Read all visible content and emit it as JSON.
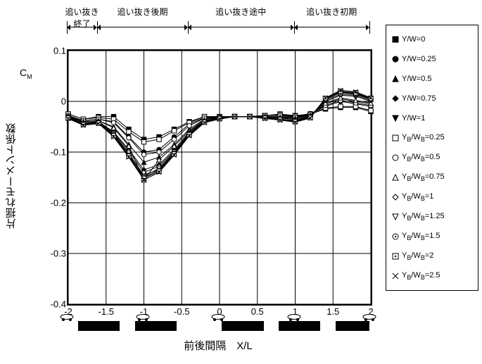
{
  "type": "line",
  "title": "",
  "ylabel": "片揺れモーメント係数",
  "ylabel_sub": "C",
  "ylabel_subscript": "M",
  "xlabel": "前後間隔　X/L",
  "xlim": [
    -2,
    2
  ],
  "ylim": [
    -0.4,
    0.1
  ],
  "xtick_step": 0.5,
  "ytick_step": 0.1,
  "yticks": [
    "0.1",
    "0",
    "-0.1",
    "-0.2",
    "-0.3",
    "-0.4"
  ],
  "xticks": [
    "-2",
    "-1.5",
    "-1",
    "-0.5",
    "0",
    "0.5",
    "1",
    "1.5",
    "2"
  ],
  "grid_color": "#000000",
  "background_color": "#ffffff",
  "line_color": "#000000",
  "line_width": 1,
  "label_fontsize": 15,
  "tick_fontsize": 13,
  "legend_fontsize": 11,
  "phases": [
    {
      "label": "追い抜き\n終了",
      "from": -2,
      "to": -1.6
    },
    {
      "label": "追い抜き後期",
      "from": -1.6,
      "to": -0.4
    },
    {
      "label": "追い抜き途中",
      "from": -0.4,
      "to": 1.0
    },
    {
      "label": "追い抜き初期",
      "from": 1.0,
      "to": 2.0
    }
  ],
  "x_values": [
    -2,
    -1.8,
    -1.6,
    -1.4,
    -1.2,
    -1.0,
    -0.8,
    -0.6,
    -0.4,
    -0.2,
    0,
    0.2,
    0.4,
    0.6,
    0.8,
    1.0,
    1.2,
    1.4,
    1.6,
    1.8,
    2.0
  ],
  "series": [
    {
      "label": "Y/W=0",
      "marker": "square-filled",
      "y": [
        -0.025,
        -0.035,
        -0.03,
        -0.03,
        -0.055,
        -0.075,
        -0.07,
        -0.055,
        -0.04,
        -0.03,
        -0.03,
        -0.03,
        -0.03,
        -0.028,
        -0.025,
        -0.028,
        -0.025,
        -0.015,
        -0.012,
        -0.012,
        -0.02
      ]
    },
    {
      "label": "Y/W=0.25",
      "marker": "circle-filled",
      "y": [
        -0.03,
        -0.038,
        -0.035,
        -0.04,
        -0.07,
        -0.1,
        -0.095,
        -0.07,
        -0.045,
        -0.032,
        -0.03,
        -0.03,
        -0.03,
        -0.028,
        -0.027,
        -0.03,
        -0.024,
        -0.01,
        0.0,
        -0.005,
        -0.01
      ]
    },
    {
      "label": "Y/W=0.5",
      "marker": "tri-up-filled",
      "y": [
        -0.028,
        -0.04,
        -0.038,
        -0.05,
        -0.085,
        -0.12,
        -0.11,
        -0.085,
        -0.055,
        -0.035,
        -0.03,
        -0.03,
        -0.03,
        -0.03,
        -0.03,
        -0.032,
        -0.026,
        -0.005,
        0.005,
        0.0,
        -0.005
      ]
    },
    {
      "label": "Y/W=0.75",
      "marker": "diamond-filled",
      "y": [
        -0.03,
        -0.042,
        -0.04,
        -0.06,
        -0.095,
        -0.135,
        -0.125,
        -0.095,
        -0.06,
        -0.038,
        -0.032,
        -0.03,
        -0.03,
        -0.03,
        -0.032,
        -0.035,
        -0.028,
        0.0,
        0.012,
        0.01,
        0.0
      ]
    },
    {
      "label": "Y/W=1",
      "marker": "tri-down-filled",
      "y": [
        -0.032,
        -0.045,
        -0.042,
        -0.065,
        -0.105,
        -0.145,
        -0.135,
        -0.1,
        -0.065,
        -0.04,
        -0.033,
        -0.03,
        -0.03,
        -0.032,
        -0.035,
        -0.038,
        -0.03,
        0.005,
        0.018,
        0.015,
        0.005
      ]
    },
    {
      "label": "Y_B/W_B=0.25",
      "marker": "square",
      "y": [
        -0.025,
        -0.035,
        -0.032,
        -0.035,
        -0.06,
        -0.08,
        -0.075,
        -0.058,
        -0.042,
        -0.03,
        -0.03,
        -0.03,
        -0.03,
        -0.028,
        -0.026,
        -0.029,
        -0.025,
        -0.013,
        -0.01,
        -0.01,
        -0.018
      ]
    },
    {
      "label": "Y_B/W_B=0.5",
      "marker": "circle",
      "y": [
        -0.028,
        -0.038,
        -0.035,
        -0.042,
        -0.072,
        -0.105,
        -0.1,
        -0.075,
        -0.048,
        -0.033,
        -0.03,
        -0.03,
        -0.03,
        -0.028,
        -0.028,
        -0.031,
        -0.025,
        -0.008,
        0.002,
        -0.003,
        -0.008
      ]
    },
    {
      "label": "Y_B/W_B=0.75",
      "marker": "tri-up",
      "y": [
        -0.03,
        -0.04,
        -0.038,
        -0.052,
        -0.088,
        -0.155,
        -0.115,
        -0.088,
        -0.058,
        -0.036,
        -0.031,
        -0.03,
        -0.03,
        -0.03,
        -0.031,
        -0.033,
        -0.027,
        -0.003,
        0.007,
        0.002,
        -0.003
      ]
    },
    {
      "label": "Y_B/W_B=1",
      "marker": "diamond",
      "y": [
        -0.03,
        -0.042,
        -0.04,
        -0.062,
        -0.098,
        -0.14,
        -0.128,
        -0.098,
        -0.062,
        -0.039,
        -0.032,
        -0.03,
        -0.03,
        -0.031,
        -0.033,
        -0.036,
        -0.029,
        0.002,
        0.014,
        0.012,
        0.002
      ]
    },
    {
      "label": "Y_B/W_B=1.25",
      "marker": "tri-down",
      "y": [
        -0.031,
        -0.044,
        -0.041,
        -0.064,
        -0.102,
        -0.148,
        -0.132,
        -0.1,
        -0.064,
        -0.04,
        -0.033,
        -0.03,
        -0.03,
        -0.032,
        -0.035,
        -0.038,
        -0.03,
        0.004,
        0.017,
        0.014,
        0.004
      ]
    },
    {
      "label": "Y_B/W_B=1.5",
      "marker": "circle-dot",
      "y": [
        -0.032,
        -0.045,
        -0.042,
        -0.066,
        -0.106,
        -0.15,
        -0.136,
        -0.102,
        -0.065,
        -0.04,
        -0.033,
        -0.03,
        -0.03,
        -0.032,
        -0.035,
        -0.039,
        -0.031,
        0.005,
        0.019,
        0.016,
        0.005
      ]
    },
    {
      "label": "Y_B/W_B=2",
      "marker": "square-dot",
      "y": [
        -0.033,
        -0.046,
        -0.043,
        -0.068,
        -0.108,
        -0.152,
        -0.138,
        -0.104,
        -0.066,
        -0.041,
        -0.034,
        -0.03,
        -0.03,
        -0.033,
        -0.036,
        -0.04,
        -0.032,
        0.006,
        0.02,
        0.017,
        0.006
      ]
    },
    {
      "label": "Y_B/W_B=2.5",
      "marker": "x-square",
      "y": [
        -0.034,
        -0.047,
        -0.044,
        -0.07,
        -0.11,
        -0.155,
        -0.14,
        -0.106,
        -0.068,
        -0.042,
        -0.035,
        -0.03,
        -0.03,
        -0.034,
        -0.037,
        -0.041,
        -0.033,
        0.007,
        0.022,
        0.019,
        0.007
      ]
    }
  ],
  "cars_x": [
    -2,
    -1,
    0,
    1,
    2
  ],
  "blackbars": [
    [
      -1.85,
      -1.3
    ],
    [
      -1.1,
      -0.55
    ],
    [
      0.05,
      0.6
    ],
    [
      0.8,
      1.35
    ],
    [
      1.55,
      2.0
    ]
  ]
}
